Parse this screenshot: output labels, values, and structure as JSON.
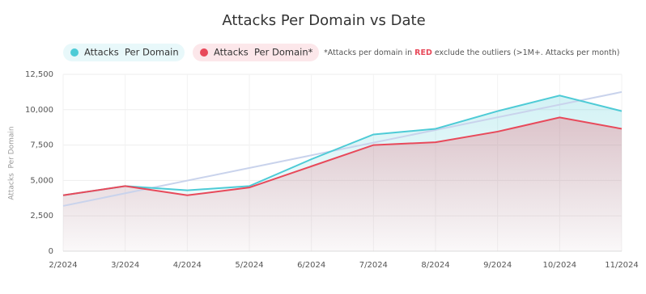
{
  "chart_data": {
    "type": "area-line",
    "title": "Attacks Per Domain vs Date",
    "y_label": "Attacks  Per Domain",
    "note": [
      "*Attacks per domain in ",
      "RED",
      " exclude the outliers (>1M+. Attacks per month)"
    ],
    "categories": [
      "2/2024",
      "3/2024",
      "4/2024",
      "5/2024",
      "6/2024",
      "7/2024",
      "8/2024",
      "9/2024",
      "10/2024",
      "11/2024"
    ],
    "series": [
      {
        "name": "Attacks  Per Domain",
        "color": "#4ecbd6",
        "values": [
          3950,
          4600,
          4300,
          4600,
          6500,
          8250,
          8650,
          9900,
          11000,
          9900
        ]
      },
      {
        "name": "Attacks  Per Domain*",
        "color": "#e8495a",
        "values": [
          3950,
          4600,
          3950,
          4500,
          6000,
          7500,
          7700,
          8450,
          9450,
          8650
        ]
      }
    ],
    "trendline": {
      "color": "#c9d3ec",
      "values": [
        3200,
        11250
      ]
    },
    "ylim": [
      0,
      12500
    ],
    "yticks": [
      0,
      {
        "value": 2500,
        "label": "2,500"
      },
      {
        "value": 5000,
        "label": "5,000"
      },
      {
        "value": 7500,
        "label": "7,500"
      },
      {
        "value": 10000,
        "label": "10,000"
      },
      {
        "value": 12500,
        "label": "12,500"
      }
    ],
    "grid": true
  }
}
